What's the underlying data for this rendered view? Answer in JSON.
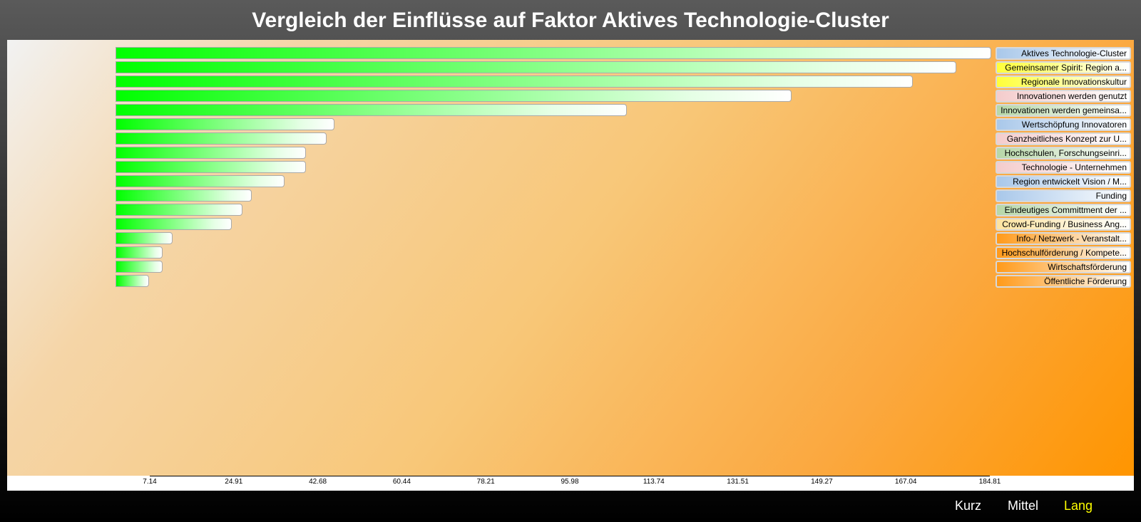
{
  "title": "Vergleich der Einflüsse auf Faktor Aktives Technologie-Cluster",
  "nav": {
    "short": "Kurz",
    "medium": "Mittel",
    "long": "Lang",
    "active": "long"
  },
  "chart_data": {
    "type": "bar",
    "orientation": "horizontal",
    "title": "Vergleich der Einflüsse auf Faktor Aktives Technologie-Cluster",
    "categories": [
      "Aktives Technologie-Cluster",
      "Gemeinsamer Spirit: Region a...",
      "Regionale Innovationskultur",
      "Innovationen werden genutzt",
      "Innovationen werden gemeinsa...",
      "Wertschöpfung Innovatoren",
      "Ganzheitliches Konzept zur U...",
      "Hochschulen, Forschungseinri...",
      "Technologie - Unternehmen",
      "Region entwickelt Vision / M...",
      "Funding",
      "Eindeutiges Committment der ...",
      "Crowd-Funding / Business Ang...",
      "Info-/ Netzwerk - Veranstalt...",
      "Hochschulförderung / Kompete...",
      "Wirtschaftsförderung",
      "Öffentliche Förderung"
    ],
    "values": [
      184.81,
      177.4,
      168.3,
      142.6,
      107.9,
      46.2,
      44.5,
      40.2,
      40.2,
      35.6,
      28.8,
      26.8,
      24.6,
      12.0,
      10.0,
      10.0,
      7.14
    ],
    "legend_colors": [
      "#a9c8ea",
      "#ffff3a",
      "#ffff3a",
      "#f4cccc",
      "#b7d7a8",
      "#a9c8ea",
      "#f4cccc",
      "#b7d7a8",
      "#f4cccc",
      "#a9c8ea",
      "#a9c8ea",
      "#b7d7a8",
      "#fde3a0",
      "#ff9a1a",
      "#ff9a1a",
      "#ff9a1a",
      "#ff9a1a"
    ],
    "x_ticks": [
      "7.14",
      "24.91",
      "42.68",
      "60.44",
      "78.21",
      "95.98",
      "113.74",
      "131.51",
      "149.27",
      "167.04",
      "184.81"
    ],
    "xlim": [
      0,
      184.81
    ],
    "legend_position": "right"
  }
}
